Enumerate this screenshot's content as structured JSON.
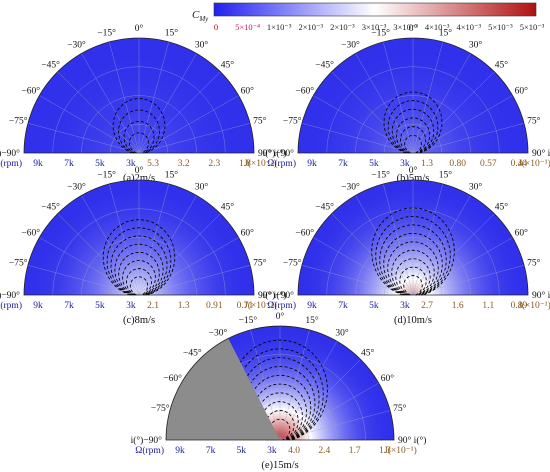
{
  "colorbar": {
    "label": "C",
    "label_sub": "My",
    "ticks": [
      "0",
      "5×10⁻⁴",
      "1×10⁻³",
      "2×10⁻³",
      "2×10⁻³",
      "3×10⁻³",
      "3×10⁻³",
      "4×10⁻³",
      "4×10⁻³",
      "5×10⁻³",
      "5×10⁻³"
    ],
    "color_low": "#2020f0",
    "color_mid": "#ffffff",
    "color_high": "#b01010"
  },
  "theta_ticks": [
    "−90°",
    "−75°",
    "−60°",
    "−45°",
    "−30°",
    "−15°",
    "0°",
    "15°",
    "30°",
    "45°",
    "60°",
    "75°",
    "90°"
  ],
  "theta_label_left": "i(°)",
  "theta_label_right": "i(°)",
  "omega_label": "Ω(rpm)",
  "omega_ticks": [
    "9k",
    "7k",
    "5k",
    "3k"
  ],
  "colors": {
    "omega_axis": "#1a1aa0",
    "j_axis": "#8a5a20",
    "shadow": "#8c8c8c",
    "contour": "#000000",
    "grid": "#9aa2c8"
  },
  "chart_data": [
    {
      "type": "heatmap",
      "title": "(a)2m/s",
      "j_ticks": [
        "5.3",
        "3.2",
        "2.3",
        "1.8"
      ],
      "j_label": "J(×10⁻²)",
      "intensity": 0.08,
      "shadow_deg": null,
      "contour_levels": 4
    },
    {
      "type": "heatmap",
      "title": "(b)5m/s",
      "j_ticks": [
        "1.3",
        "0.80",
        "0.57",
        "0.44"
      ],
      "j_label": "J(×10⁻¹)",
      "intensity": 0.16,
      "shadow_deg": null,
      "contour_levels": 6
    },
    {
      "type": "heatmap",
      "title": "(c)8m/s",
      "j_ticks": [
        "2.1",
        "1.3",
        "0.91",
        "0.71"
      ],
      "j_label": "J(×10⁻¹)",
      "intensity": 0.45,
      "shadow_deg": null,
      "contour_levels": 8
    },
    {
      "type": "heatmap",
      "title": "(d)10m/s",
      "j_ticks": [
        "2.7",
        "1.6",
        "1.1",
        "0.89"
      ],
      "j_label": "J(×10⁻¹)",
      "intensity": 0.7,
      "shadow_deg": null,
      "contour_levels": 9
    },
    {
      "type": "heatmap",
      "title": "(e)15m/s",
      "j_ticks": [
        "4.0",
        "2.4",
        "1.7",
        "1.3"
      ],
      "j_label": "J(×10⁻¹)",
      "intensity": 1.0,
      "shadow_deg": [
        -90,
        -27
      ],
      "contour_levels": 10
    }
  ]
}
